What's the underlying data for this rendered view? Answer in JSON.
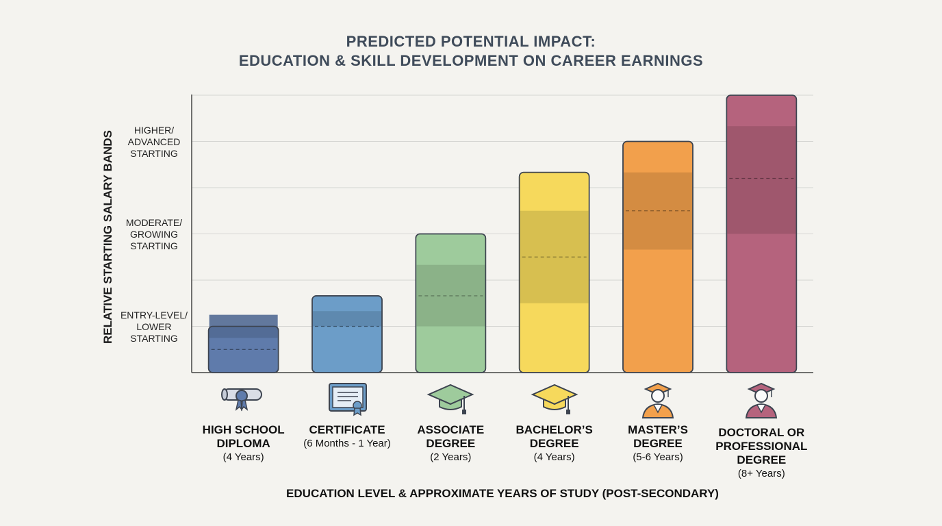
{
  "chart_data": {
    "type": "bar",
    "title": "PREDICTED POTENTIAL IMPACT:",
    "subtitle": "EDUCATION & SKILL DEVELOPMENT ON CAREER EARNINGS",
    "ylabel": "RELATIVE STARTING SALARY BANDS",
    "xlabel": "EDUCATION LEVEL & APPROXIMATE YEARS OF STUDY (POST-SECONDARY)",
    "ylim": [
      0,
      6
    ],
    "grid": true,
    "y_band_labels": [
      {
        "text": "ENTRY-LEVEL/\nLOWER\nSTARTING",
        "value": 1
      },
      {
        "text": "MODERATE/\nGROWING\nSTARTING",
        "value": 3
      },
      {
        "text": "HIGHER/\nADVANCED\nSTARTING",
        "value": 5
      }
    ],
    "categories": [
      {
        "name": "HIGH SCHOOL\nDIPLOMA",
        "years": "(4 Years)",
        "value": 1.0,
        "range": [
          0.75,
          1.25
        ],
        "typical": 0.5,
        "color": "#5f7bab",
        "icon": "diploma-icon"
      },
      {
        "name": "CERTIFICATE",
        "years": "(6 Months - 1 Year)",
        "value": 1.66,
        "range": [
          1.0,
          1.33
        ],
        "typical": 1.0,
        "color": "#6c9dc8",
        "icon": "certificate-icon"
      },
      {
        "name": "ASSOCIATE\nDEGREE",
        "years": "(2 Years)",
        "value": 3.0,
        "range": [
          1.0,
          2.33
        ],
        "typical": 1.66,
        "color": "#9ecb9c",
        "icon": "graduation-cap-icon"
      },
      {
        "name": "BACHELOR’S\nDEGREE",
        "years": "(4 Years)",
        "value": 4.33,
        "range": [
          1.5,
          3.5
        ],
        "typical": 2.5,
        "color": "#f6d95c",
        "icon": "graduation-cap-icon"
      },
      {
        "name": "MASTER’S\nDEGREE",
        "years": "(5-6 Years)",
        "value": 5.0,
        "range": [
          2.66,
          4.33
        ],
        "typical": 3.5,
        "color": "#f2a04c",
        "icon": "graduate-person-icon"
      },
      {
        "name": "DOCTORAL OR\nPROFESSIONAL\nDEGREE",
        "years": "(8+ Years)",
        "value": 6.0,
        "range": [
          3.0,
          5.33
        ],
        "typical": 4.2,
        "color": "#b5637d",
        "icon": "doctoral-person-icon"
      }
    ]
  }
}
